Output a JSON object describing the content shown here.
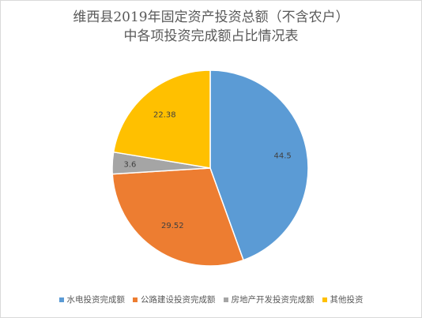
{
  "chart_data": {
    "type": "pie",
    "title": [
      "维西县2019年固定资产投资总额（不含农户）",
      "中各项投资完成额占比情况表"
    ],
    "categories": [
      "水电投资完成额",
      "公路建设投资完成额",
      "房地产开发投资完成额",
      "其他投资"
    ],
    "values": [
      44.5,
      29.52,
      3.6,
      22.38
    ],
    "data_labels": [
      "44.5",
      "29.52",
      "3.6",
      "22.38"
    ],
    "colors": [
      "#5B9BD5",
      "#ED7D31",
      "#A5A5A5",
      "#FFC000"
    ],
    "start_angle_deg": 0,
    "direction": "clockwise",
    "legend_position": "bottom"
  }
}
